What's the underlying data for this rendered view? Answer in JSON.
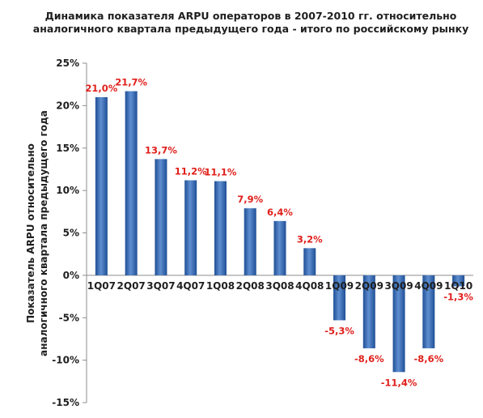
{
  "chart_data": {
    "type": "bar",
    "title": "Динамика показателя ARPU операторов в 2007-2010 гг. относительно аналогичного квартала предыдущего года - итого по российскому рынку",
    "title_lines": [
      "Динамика показателя ARPU операторов в 2007-2010 гг. относительно",
      "аналогичного квартала предыдущего года - итого по российскому рынку"
    ],
    "ylabel": "Показатель ARPU относительно аналогичного квартала предыдущего года",
    "ylabel_lines": [
      "Показатель  ARPU относительно",
      "аналогичного квартала предыдущего  года"
    ],
    "xlabel": "",
    "categories": [
      "1Q07",
      "2Q07",
      "3Q07",
      "4Q07",
      "1Q08",
      "2Q08",
      "3Q08",
      "4Q08",
      "1Q09",
      "2Q09",
      "3Q09",
      "4Q09",
      "1Q10"
    ],
    "values": [
      21.0,
      21.7,
      13.7,
      11.2,
      11.1,
      7.9,
      6.4,
      3.2,
      -5.3,
      -8.6,
      -11.4,
      -8.6,
      -1.3
    ],
    "data_labels": [
      "21,0%",
      "21,7%",
      "13,7%",
      "11,2%",
      "11,1%",
      "7,9%",
      "6,4%",
      "3,2%",
      "-5,3%",
      "-8,6%",
      "-11,4%",
      "-8,6%",
      "-1,3%"
    ],
    "yticks": [
      25,
      20,
      15,
      10,
      5,
      0,
      -5,
      -10,
      -15
    ],
    "ytick_labels": [
      "25%",
      "20%",
      "15%",
      "10%",
      "5%",
      "0%",
      "-5%",
      "-10%",
      "-15%"
    ],
    "ylim": [
      -15,
      25
    ],
    "grid": false,
    "legend": "none",
    "colors": {
      "bar_light": "#5f8fd0",
      "bar_dark": "#1f4f96",
      "data_label": "#e0201b",
      "axis": "#8c8c8c",
      "text": "#1f1f1f"
    }
  }
}
